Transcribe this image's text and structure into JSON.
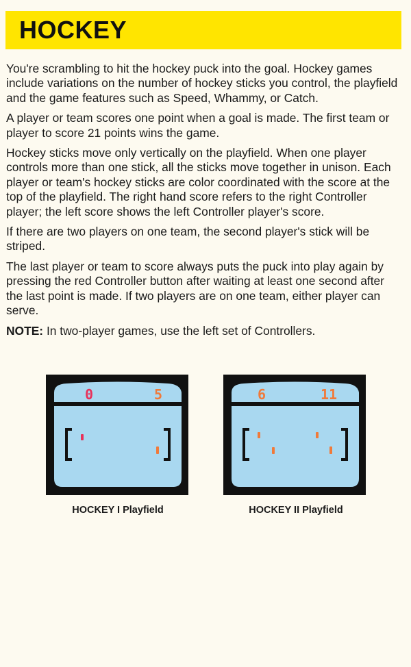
{
  "title": "HOCKEY",
  "paragraphs": [
    "You're scrambling to hit the hockey puck into the goal. Hockey games include variations on the number of hockey sticks you control, the playfield and the game features such as Speed, Whammy, or Catch.",
    "A player or team scores one point when a goal is made. The first team or player to score 21 points wins the game.",
    "Hockey sticks move only vertically on the playfield. When one player controls more than one stick, all the sticks move together in unison. Each player or team's hockey sticks are color coordinated with the score at the top of the playfield. The right hand score refers to the right Controller player; the left score shows the left Controller player's score.",
    "If there are two players on one team, the second player's stick will be striped.",
    "The last player or team to score always puts the puck into play again by pressing the red Controller button after waiting at least one second after the last point is made. If two players are on one team, either player can serve."
  ],
  "note": {
    "label": "NOTE:",
    "text": " In two-player games, use the left set of Controllers."
  },
  "figures": [
    {
      "caption": "HOCKEY I Playfield",
      "score_left": "0",
      "score_right": "5"
    },
    {
      "caption": "HOCKEY II Playfield",
      "score_left": "6",
      "score_right": "11"
    }
  ],
  "colors": {
    "title_bg": "#ffe500",
    "screen_bezel": "#111111",
    "playfield": "#a9d8f0",
    "score_left": "#e8315a",
    "score_right": "#f07a3a"
  }
}
